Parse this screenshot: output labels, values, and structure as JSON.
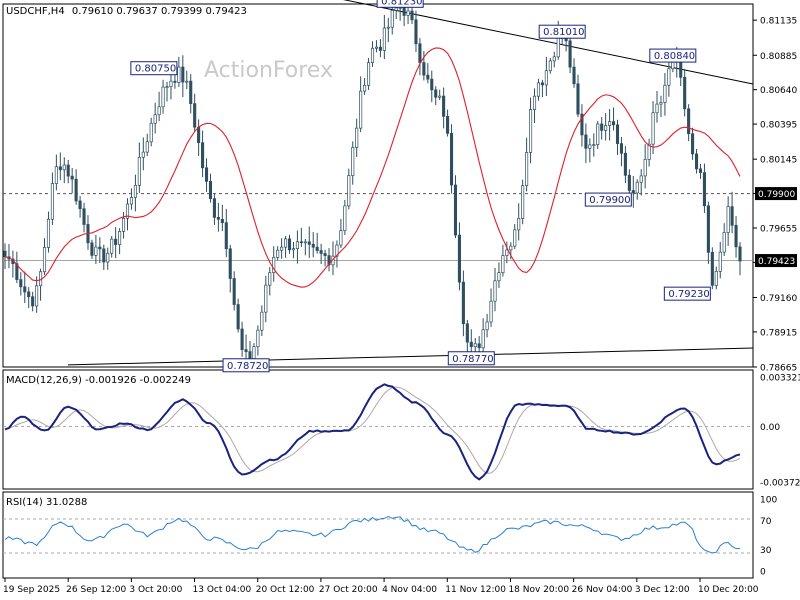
{
  "header": {
    "symbol": "USDCHF,H4",
    "ohlc": "0.79610 0.79637 0.79399 0.79423"
  },
  "watermark": "ActionForex",
  "colors": {
    "candles": "#2f4f60",
    "ma": "#e0202a",
    "macd_main": "#1a237e",
    "macd_signal": "#b0a8a8",
    "rsi": "#2a7fd4",
    "trendline": "#000000",
    "label_border": "#1a237e",
    "price_tag_bg": "#000000",
    "grid": "#bbbbbb"
  },
  "chart_data": [
    {
      "type": "candlestick",
      "panel": "price",
      "ylim": [
        0.78665,
        0.8125
      ],
      "yticks": [
        "0.81135",
        "0.80885",
        "0.80640",
        "0.80395",
        "0.80145",
        "0.79900",
        "0.79655",
        "0.79410",
        "0.79160",
        "0.78915",
        "0.78665"
      ],
      "current_price": "0.79423",
      "level_tag": "0.79900",
      "annotations": [
        {
          "text": "0.81230",
          "price": 0.8123
        },
        {
          "text": "0.81010",
          "price": 0.8101
        },
        {
          "text": "0.80840",
          "price": 0.8084
        },
        {
          "text": "0.80750",
          "price": 0.8075
        },
        {
          "text": "0.79900",
          "price": 0.799
        },
        {
          "text": "0.79230",
          "price": 0.7923
        },
        {
          "text": "0.78720",
          "price": 0.7872
        },
        {
          "text": "0.78770",
          "price": 0.7877
        }
      ],
      "x_labels": [
        "19 Sep 2025",
        "26 Sep 12:00",
        "3 Oct 20:00",
        "13 Oct 04:00",
        "20 Oct 12:00",
        "27 Oct 20:00",
        "4 Nov 04:00",
        "11 Nov 12:00",
        "18 Nov 20:00",
        "26 Nov 04:00",
        "3 Dec 12:00",
        "10 Dec 20:00"
      ],
      "key_points": [
        {
          "bar": 0,
          "close": 0.7945
        },
        {
          "bar": 7,
          "close": 0.7915
        },
        {
          "bar": 14,
          "close": 0.8012
        },
        {
          "bar": 24,
          "close": 0.7945
        },
        {
          "bar": 44,
          "close": 0.8075
        },
        {
          "bar": 54,
          "close": 0.7975
        },
        {
          "bar": 61,
          "close": 0.7872
        },
        {
          "bar": 70,
          "close": 0.7955
        },
        {
          "bar": 82,
          "close": 0.7945
        },
        {
          "bar": 94,
          "close": 0.8095
        },
        {
          "bar": 100,
          "close": 0.8123
        },
        {
          "bar": 110,
          "close": 0.8055
        },
        {
          "bar": 118,
          "close": 0.7877
        },
        {
          "bar": 128,
          "close": 0.7955
        },
        {
          "bar": 135,
          "close": 0.807
        },
        {
          "bar": 141,
          "close": 0.8101
        },
        {
          "bar": 147,
          "close": 0.8025
        },
        {
          "bar": 153,
          "close": 0.8045
        },
        {
          "bar": 159,
          "close": 0.799
        },
        {
          "bar": 166,
          "close": 0.8055
        },
        {
          "bar": 169,
          "close": 0.8084
        },
        {
          "bar": 176,
          "close": 0.8
        },
        {
          "bar": 179,
          "close": 0.7923
        },
        {
          "bar": 183,
          "close": 0.7975
        },
        {
          "bar": 186,
          "close": 0.7942
        }
      ]
    },
    {
      "type": "line",
      "panel": "macd",
      "title": "MACD(12,26,9) -0.001926 -0.002249",
      "ylim": [
        -0.003723,
        0.003321
      ],
      "yticks": [
        "0.003321",
        "0.00",
        "-0.003723"
      ],
      "key_points": [
        {
          "bar": 0,
          "value": -0.0002
        },
        {
          "bar": 4,
          "value": 0.0007
        },
        {
          "bar": 10,
          "value": -0.0003
        },
        {
          "bar": 16,
          "value": 0.0013
        },
        {
          "bar": 24,
          "value": -0.0002
        },
        {
          "bar": 30,
          "value": 0.0002
        },
        {
          "bar": 36,
          "value": -0.0002
        },
        {
          "bar": 45,
          "value": 0.0018
        },
        {
          "bar": 52,
          "value": 0.0002
        },
        {
          "bar": 60,
          "value": -0.0032
        },
        {
          "bar": 68,
          "value": -0.0022
        },
        {
          "bar": 78,
          "value": -0.0003
        },
        {
          "bar": 86,
          "value": -0.0003
        },
        {
          "bar": 96,
          "value": 0.0028
        },
        {
          "bar": 104,
          "value": 0.0016
        },
        {
          "bar": 112,
          "value": -0.0005
        },
        {
          "bar": 120,
          "value": -0.0035
        },
        {
          "bar": 130,
          "value": 0.0015
        },
        {
          "bar": 142,
          "value": 0.0014
        },
        {
          "bar": 148,
          "value": -0.0002
        },
        {
          "bar": 160,
          "value": -0.0005
        },
        {
          "bar": 172,
          "value": 0.0012
        },
        {
          "bar": 180,
          "value": -0.0025
        },
        {
          "bar": 186,
          "value": -0.0019
        }
      ]
    },
    {
      "type": "line",
      "panel": "rsi",
      "title": "RSI(14) 31.0288",
      "ylim": [
        0,
        100
      ],
      "yticks": [
        "100",
        "70",
        "30",
        "0"
      ],
      "key_points": [
        {
          "bar": 0,
          "value": 45
        },
        {
          "bar": 8,
          "value": 38
        },
        {
          "bar": 14,
          "value": 68
        },
        {
          "bar": 22,
          "value": 42
        },
        {
          "bar": 30,
          "value": 65
        },
        {
          "bar": 36,
          "value": 50
        },
        {
          "bar": 44,
          "value": 72
        },
        {
          "bar": 52,
          "value": 45
        },
        {
          "bar": 62,
          "value": 30
        },
        {
          "bar": 70,
          "value": 55
        },
        {
          "bar": 80,
          "value": 50
        },
        {
          "bar": 90,
          "value": 70
        },
        {
          "bar": 98,
          "value": 76
        },
        {
          "bar": 108,
          "value": 55
        },
        {
          "bar": 118,
          "value": 28
        },
        {
          "bar": 128,
          "value": 58
        },
        {
          "bar": 138,
          "value": 68
        },
        {
          "bar": 146,
          "value": 62
        },
        {
          "bar": 156,
          "value": 45
        },
        {
          "bar": 164,
          "value": 60
        },
        {
          "bar": 172,
          "value": 66
        },
        {
          "bar": 178,
          "value": 24
        },
        {
          "bar": 183,
          "value": 38
        },
        {
          "bar": 186,
          "value": 31
        }
      ]
    }
  ]
}
